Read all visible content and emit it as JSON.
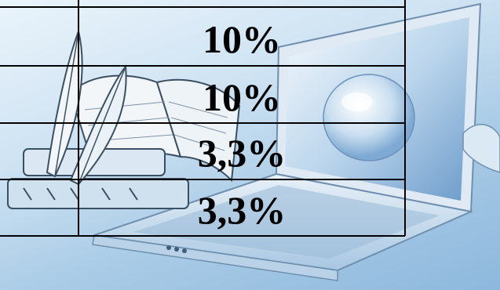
{
  "table": {
    "rows": [
      {
        "value": "10%"
      },
      {
        "value": "10%"
      },
      {
        "value": "3,3%"
      },
      {
        "value": "3,3%"
      }
    ]
  },
  "colors": {
    "background_light": "#eaf4fb",
    "background_dark": "#8db8dd",
    "grid_line": "#000000",
    "text": "#000000"
  }
}
